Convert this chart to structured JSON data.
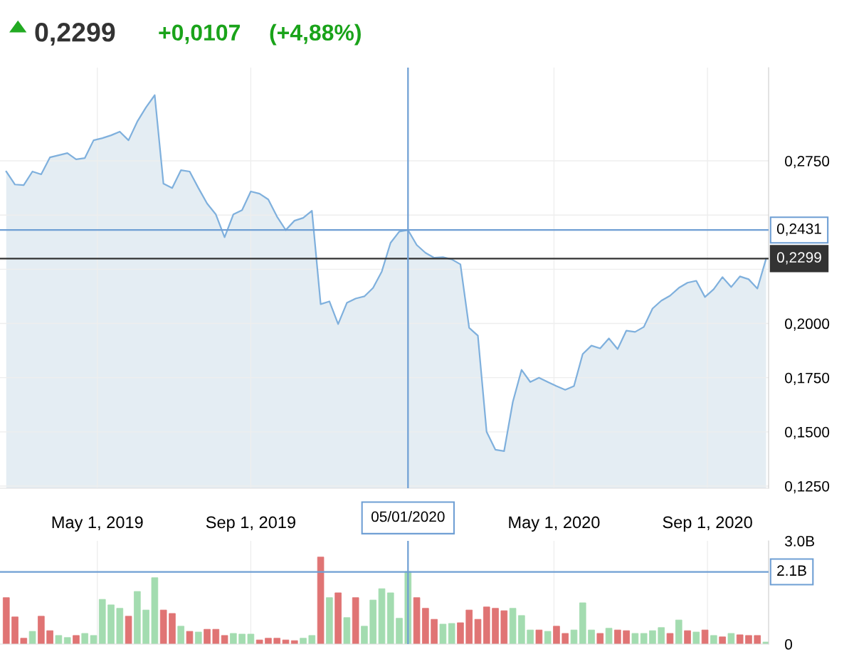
{
  "chart_data": [
    {
      "type": "area",
      "title": "0,2299",
      "annotations": [
        "+0,0107",
        "(+4,88%)"
      ],
      "x": [
        "2019-02-17",
        "2019-02-24",
        "2019-03-03",
        "2019-03-10",
        "2019-03-17",
        "2019-03-24",
        "2019-03-31",
        "2019-04-07",
        "2019-04-14",
        "2019-04-21",
        "2019-04-28",
        "2019-05-05",
        "2019-05-12",
        "2019-05-19",
        "2019-05-26",
        "2019-06-02",
        "2019-06-09",
        "2019-06-16",
        "2019-06-23",
        "2019-06-30",
        "2019-07-07",
        "2019-07-14",
        "2019-07-21",
        "2019-07-28",
        "2019-08-04",
        "2019-08-11",
        "2019-08-18",
        "2019-08-25",
        "2019-09-01",
        "2019-09-08",
        "2019-09-15",
        "2019-09-22",
        "2019-09-29",
        "2019-10-06",
        "2019-10-13",
        "2019-10-20",
        "2019-10-27",
        "2019-11-03",
        "2019-11-10",
        "2019-11-17",
        "2019-11-24",
        "2019-12-01",
        "2019-12-08",
        "2019-12-15",
        "2019-12-22",
        "2019-12-29",
        "2020-01-05",
        "2020-01-12",
        "2020-01-19",
        "2020-01-26",
        "2020-02-02",
        "2020-02-09",
        "2020-02-16",
        "2020-02-23",
        "2020-03-01",
        "2020-03-08",
        "2020-03-15",
        "2020-03-22",
        "2020-03-29",
        "2020-04-05",
        "2020-04-12",
        "2020-04-19",
        "2020-04-26",
        "2020-05-03",
        "2020-05-10",
        "2020-05-17",
        "2020-05-24",
        "2020-05-31",
        "2020-06-07",
        "2020-06-14",
        "2020-06-21",
        "2020-06-28",
        "2020-07-05",
        "2020-07-12",
        "2020-07-19",
        "2020-07-26",
        "2020-08-02",
        "2020-08-09",
        "2020-08-16",
        "2020-08-23",
        "2020-08-30",
        "2020-09-06",
        "2020-09-13",
        "2020-09-20",
        "2020-09-27",
        "2020-10-04",
        "2020-10-11",
        "2020-10-18"
      ],
      "series": [
        {
          "color": "#7fb0dd",
          "values": [
            0.2701,
            0.2641,
            0.2638,
            0.2701,
            0.2688,
            0.2766,
            0.2776,
            0.2786,
            0.2757,
            0.2763,
            0.2845,
            0.2855,
            0.2868,
            0.2885,
            0.2845,
            0.2931,
            0.2997,
            0.3053,
            0.2645,
            0.2625,
            0.2707,
            0.2701,
            0.2625,
            0.2553,
            0.2503,
            0.2398,
            0.2503,
            0.2523,
            0.2609,
            0.2599,
            0.2572,
            0.2493,
            0.2431,
            0.2474,
            0.2487,
            0.252,
            0.2089,
            0.2102,
            0.1997,
            0.2095,
            0.2115,
            0.2125,
            0.2164,
            0.224,
            0.2372,
            0.2424,
            0.2431,
            0.2362,
            0.2326,
            0.2303,
            0.2306,
            0.2296,
            0.2273,
            0.198,
            0.1944,
            0.15,
            0.1418,
            0.1411,
            0.1638,
            0.1786,
            0.173,
            0.175,
            0.173,
            0.1711,
            0.1694,
            0.1711,
            0.1859,
            0.1898,
            0.1885,
            0.1931,
            0.1882,
            0.1967,
            0.1961,
            0.1984,
            0.2069,
            0.2105,
            0.2128,
            0.2164,
            0.2188,
            0.2197,
            0.2122,
            0.2158,
            0.2214,
            0.2168,
            0.2217,
            0.2204,
            0.2161,
            0.2299
          ]
        }
      ],
      "xlim": [
        "2019-02-12",
        "2020-10-20"
      ],
      "xticks": [
        {
          "value": "2019-05-01",
          "label": "May 1, 2019"
        },
        {
          "value": "2019-09-01",
          "label": "Sep 1, 2019"
        },
        {
          "value": "2020-05-01",
          "label": "May 1, 2020"
        },
        {
          "value": "2020-09-01",
          "label": "Sep 1, 2020"
        }
      ],
      "ylim": [
        0.124,
        0.318
      ],
      "yticks": [
        {
          "value": 0.125,
          "label": "0,1250"
        },
        {
          "value": 0.15,
          "label": "0,1500"
        },
        {
          "value": 0.175,
          "label": "0,1750"
        },
        {
          "value": 0.2,
          "label": "0,2000"
        },
        {
          "value": 0.225,
          "label": null
        },
        {
          "value": 0.25,
          "label": null
        },
        {
          "value": 0.275,
          "label": "0,2750"
        }
      ],
      "ref_lines": [
        {
          "axis": "y",
          "value": 0.2431,
          "label": "0,2431",
          "color": "#6f9fd4"
        },
        {
          "axis": "y",
          "value": 0.2299,
          "label": "0,2299",
          "color": "#333333"
        },
        {
          "axis": "x",
          "value": "2020-01-05",
          "label": "05/01/2020",
          "color": "#6f9fd4"
        }
      ],
      "grid": true
    },
    {
      "type": "bar",
      "x": [
        "2019-02-17",
        "2019-02-24",
        "2019-03-03",
        "2019-03-10",
        "2019-03-17",
        "2019-03-24",
        "2019-03-31",
        "2019-04-07",
        "2019-04-14",
        "2019-04-21",
        "2019-04-28",
        "2019-05-05",
        "2019-05-12",
        "2019-05-19",
        "2019-05-26",
        "2019-06-02",
        "2019-06-09",
        "2019-06-16",
        "2019-06-23",
        "2019-06-30",
        "2019-07-07",
        "2019-07-14",
        "2019-07-21",
        "2019-07-28",
        "2019-08-04",
        "2019-08-11",
        "2019-08-18",
        "2019-08-25",
        "2019-09-01",
        "2019-09-08",
        "2019-09-15",
        "2019-09-22",
        "2019-09-29",
        "2019-10-06",
        "2019-10-13",
        "2019-10-20",
        "2019-10-27",
        "2019-11-03",
        "2019-11-10",
        "2019-11-17",
        "2019-11-24",
        "2019-12-01",
        "2019-12-08",
        "2019-12-15",
        "2019-12-22",
        "2019-12-29",
        "2020-01-05",
        "2020-01-12",
        "2020-01-19",
        "2020-01-26",
        "2020-02-02",
        "2020-02-09",
        "2020-02-16",
        "2020-02-23",
        "2020-03-01",
        "2020-03-08",
        "2020-03-15",
        "2020-03-22",
        "2020-03-29",
        "2020-04-05",
        "2020-04-12",
        "2020-04-19",
        "2020-04-26",
        "2020-05-03",
        "2020-05-10",
        "2020-05-17",
        "2020-05-24",
        "2020-05-31",
        "2020-06-07",
        "2020-06-14",
        "2020-06-21",
        "2020-06-28",
        "2020-07-05",
        "2020-07-12",
        "2020-07-19",
        "2020-07-26",
        "2020-08-02",
        "2020-08-09",
        "2020-08-16",
        "2020-08-23",
        "2020-08-30",
        "2020-09-06",
        "2020-09-13",
        "2020-09-20",
        "2020-09-27",
        "2020-10-04",
        "2020-10-11",
        "2020-10-18"
      ],
      "values": [
        1.35,
        0.79,
        0.17,
        0.37,
        0.81,
        0.39,
        0.25,
        0.19,
        0.25,
        0.31,
        0.25,
        1.3,
        1.14,
        1.04,
        0.81,
        1.53,
        0.99,
        1.93,
        0.99,
        0.89,
        0.52,
        0.37,
        0.35,
        0.43,
        0.43,
        0.25,
        0.31,
        0.29,
        0.29,
        0.12,
        0.17,
        0.17,
        0.12,
        0.1,
        0.17,
        0.25,
        2.53,
        1.35,
        1.49,
        0.77,
        1.35,
        0.52,
        1.28,
        1.61,
        1.49,
        0.75,
        2.11,
        1.35,
        1.04,
        0.72,
        0.58,
        0.6,
        0.62,
        0.99,
        0.72,
        1.08,
        1.04,
        0.97,
        1.04,
        0.83,
        0.41,
        0.41,
        0.37,
        0.52,
        0.31,
        0.41,
        1.2,
        0.41,
        0.31,
        0.46,
        0.41,
        0.39,
        0.31,
        0.31,
        0.39,
        0.48,
        0.31,
        0.7,
        0.39,
        0.35,
        0.41,
        0.25,
        0.21,
        0.31,
        0.27,
        0.25,
        0.25,
        0.06
      ],
      "colors": [
        "#e07474",
        "#e07474",
        "#e07474",
        "#a3dcb0",
        "#e07474",
        "#e07474",
        "#a3dcb0",
        "#a3dcb0",
        "#e07474",
        "#a3dcb0",
        "#a3dcb0",
        "#a3dcb0",
        "#a3dcb0",
        "#a3dcb0",
        "#e07474",
        "#a3dcb0",
        "#a3dcb0",
        "#a3dcb0",
        "#e07474",
        "#e07474",
        "#a3dcb0",
        "#e07474",
        "#a3dcb0",
        "#e07474",
        "#e07474",
        "#e07474",
        "#a3dcb0",
        "#a3dcb0",
        "#a3dcb0",
        "#e07474",
        "#e07474",
        "#e07474",
        "#e07474",
        "#e07474",
        "#a3dcb0",
        "#a3dcb0",
        "#e07474",
        "#a3dcb0",
        "#e07474",
        "#a3dcb0",
        "#e07474",
        "#a3dcb0",
        "#a3dcb0",
        "#a3dcb0",
        "#a3dcb0",
        "#a3dcb0",
        "#a3dcb0",
        "#e07474",
        "#e07474",
        "#e07474",
        "#a3dcb0",
        "#a3dcb0",
        "#e07474",
        "#e07474",
        "#e07474",
        "#e07474",
        "#e07474",
        "#e07474",
        "#a3dcb0",
        "#a3dcb0",
        "#a3dcb0",
        "#e07474",
        "#a3dcb0",
        "#e07474",
        "#e07474",
        "#a3dcb0",
        "#a3dcb0",
        "#a3dcb0",
        "#e07474",
        "#a3dcb0",
        "#e07474",
        "#e07474",
        "#a3dcb0",
        "#a3dcb0",
        "#a3dcb0",
        "#a3dcb0",
        "#e07474",
        "#a3dcb0",
        "#e07474",
        "#a3dcb0",
        "#e07474",
        "#a3dcb0",
        "#e07474",
        "#a3dcb0",
        "#e07474",
        "#e07474",
        "#e07474",
        "#a3dcb0"
      ],
      "xlim": [
        "2019-02-12",
        "2020-10-20"
      ],
      "ylim": [
        0,
        3.0
      ],
      "yticks": [
        {
          "value": 0,
          "label": "0"
        },
        {
          "value": 3.0,
          "label": "3.0B"
        }
      ],
      "ref_lines": [
        {
          "axis": "y",
          "value": 2.1,
          "label": "2.1B",
          "color": "#6f9fd4"
        },
        {
          "axis": "x",
          "value": "2020-01-05",
          "color": "#6f9fd4"
        }
      ],
      "tick_labels": "y",
      "grid": "x"
    }
  ]
}
